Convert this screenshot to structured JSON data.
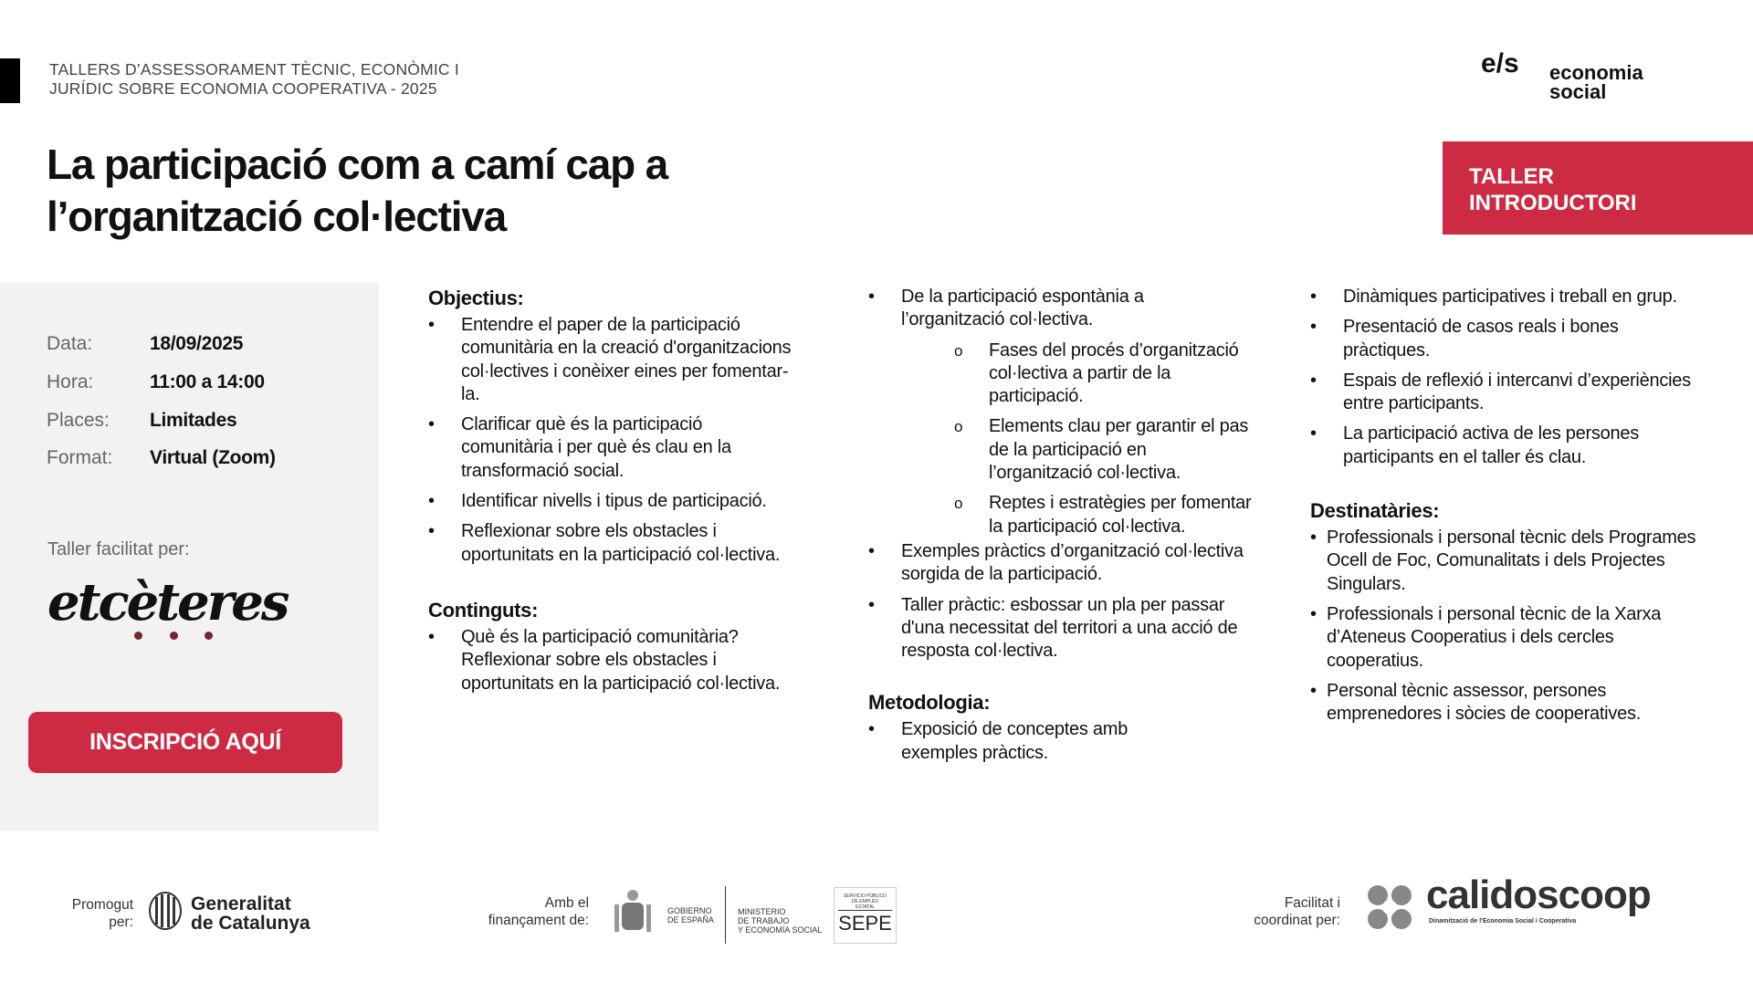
{
  "header": {
    "kicker_line1": "TALLERS D’ASSESSORAMENT TÈCNIC, ECONÒMIC I",
    "kicker_line2": "JURÍDIC SOBRE ECONOMIA COOPERATIVA - 2025",
    "title_line1": "La participació com a camí cap a",
    "title_line2": "l’organització col·lectiva",
    "logo": {
      "mark": "e/s",
      "line1": "economia",
      "line2": "social"
    },
    "badge_line1": "TALLER",
    "badge_line2": "INTRODUCTORI"
  },
  "colors": {
    "accent": "#cc2b43",
    "panel": "#f2f2f2",
    "dots": "#7a2432"
  },
  "info": [
    {
      "label": "Data:",
      "value": "18/09/2025"
    },
    {
      "label": "Hora:",
      "value": "11:00 a 14:00"
    },
    {
      "label": "Places:",
      "value": "Limitades"
    },
    {
      "label": "Format:",
      "value": "Virtual (Zoom)"
    }
  ],
  "facilitator": {
    "label": "Taller facilitat per:",
    "logo_text": "etcèteres"
  },
  "cta": {
    "label": "INSCRIPCIÓ AQUÍ"
  },
  "objectius": {
    "heading": "Objectius:",
    "items": [
      "Entendre el paper de la participació comunitària en la creació d'organitzacions col·lectives i conèixer eines per fomentar-la.",
      "Clarificar què és la participació comunitària i per què és clau en la transformació social.",
      "Identificar nivells i tipus de participació.",
      "Reflexionar sobre els obstacles i oportunitats en la participació col·lectiva."
    ]
  },
  "continguts": {
    "heading": "Continguts:",
    "items": [
      "Què és la participació comunitària? Reflexionar sobre els obstacles i oportunitats en la participació col·lectiva.",
      "De la participació espontània a l’organització col·lectiva."
    ],
    "subitems": [
      "Fases del procés d’organització col·lectiva a partir de la participació.",
      "Elements clau per garantir el pas de la participació en l’organització col·lectiva.",
      "Reptes i estratègies per fomentar la participació col·lectiva."
    ],
    "items_after": [
      "Exemples pràctics d’organització col·lectiva sorgida de la participació.",
      "Taller pràctic: esbossar un pla per passar d'una necessitat del territori a una acció de resposta col·lectiva."
    ]
  },
  "metodologia": {
    "heading": "Metodologia:",
    "items": [
      "Exposició de conceptes amb exemples pràctics.",
      "Dinàmiques participatives i treball en grup.",
      "Presentació de casos reals i bones pràctiques.",
      "Espais de reflexió i intercanvi d’experiències entre participants.",
      "La participació activa de les persones participants en el taller és clau."
    ]
  },
  "destinataries": {
    "heading": "Destinatàries:",
    "items": [
      "Professionals i personal tècnic dels Programes Ocell de Foc, Comunalitats i dels Projectes Singulars.",
      "Professionals i personal tècnic de la Xarxa d’Ateneus Cooperatius i dels cercles cooperatius.",
      "Personal tècnic assessor, persones emprenedores i sòcies de cooperatives."
    ]
  },
  "footer": {
    "promogut_line1": "Promogut",
    "promogut_line2": "per:",
    "generalitat_line1": "Generalitat",
    "generalitat_line2": "de Catalunya",
    "financament_line1": "Amb el",
    "financament_line2": "finançament de:",
    "gobierno_line1": "GOBIERNO",
    "gobierno_line2": "DE ESPAÑA",
    "ministerio_line1": "MINISTERIO",
    "ministerio_line2": "DE TRABAJO",
    "ministerio_line3": "Y ECONOMÍA SOCIAL",
    "sepe_small": "SERVICIO PÚBLICO DE EMPLEO ESTATAL",
    "sepe": "SEPE",
    "facilitat_line1": "Facilitat i",
    "facilitat_line2": "coordinat per:",
    "calidoscoop": "calidoscoop",
    "calidoscoop_tag": "Dinamització de l'Economia Social i Cooperativa"
  }
}
